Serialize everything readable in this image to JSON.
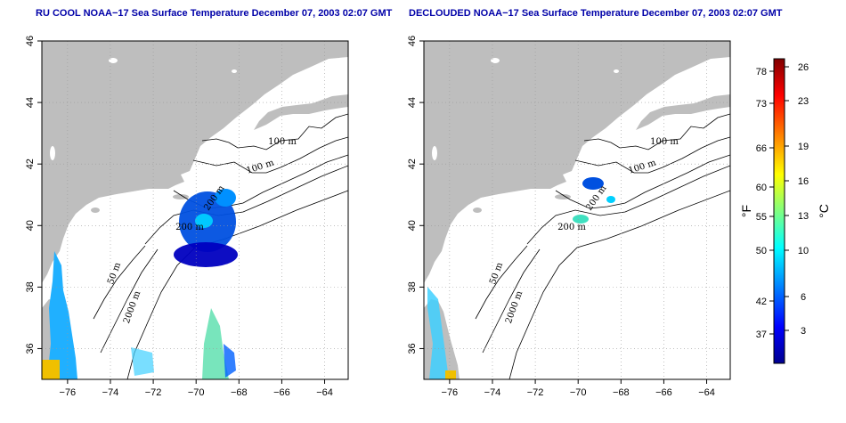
{
  "panels": [
    {
      "title": "RU COOL NOAA−17 Sea Surface Temperature December 07, 2003 02:07 GMT",
      "contour_labels": [
        "100 m",
        "100 m",
        "200 m",
        "200 m",
        "50 m",
        "2000 m"
      ]
    },
    {
      "title": "DECLOUDED NOAA−17 Sea Surface Temperature December 07, 2003 02:07 GMT",
      "contour_labels": [
        "100 m",
        "100 m",
        "200 m",
        "200 m",
        "50 m",
        "2000 m"
      ]
    }
  ],
  "axes": {
    "x_ticks": [
      "−76",
      "−74",
      "−72",
      "−70",
      "−68",
      "−66",
      "−64"
    ],
    "y_ticks": [
      "36",
      "38",
      "40",
      "42",
      "44",
      "46"
    ],
    "x_range": [
      -77.2,
      -62.9
    ],
    "y_range": [
      35.0,
      46.0
    ],
    "grid": "dotted"
  },
  "colorbar": {
    "fahrenheit_label": "°F",
    "celsius_label": "°C",
    "fahrenheit_ticks": [
      "37",
      "42",
      "50",
      "55",
      "60",
      "66",
      "73",
      "78"
    ],
    "celsius_ticks": [
      "3",
      "6",
      "10",
      "13",
      "16",
      "19",
      "23",
      "26"
    ],
    "gradient_colors": [
      "#00008f",
      "#0000ff",
      "#0080ff",
      "#00ffff",
      "#80ff80",
      "#ffff00",
      "#ff8000",
      "#ff0000",
      "#800000"
    ]
  },
  "colors": {
    "land": "#bebebe",
    "sea": "#ffffff",
    "title": "#0000a8"
  }
}
